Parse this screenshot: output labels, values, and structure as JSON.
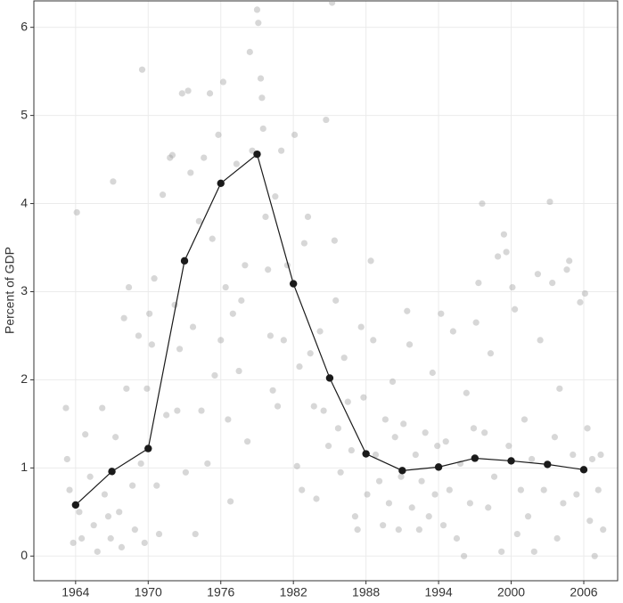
{
  "chart_data": {
    "ylabel": "Percent of GDP",
    "xlim": [
      1960.55,
      2008.8
    ],
    "ylim": [
      -0.28,
      6.3
    ],
    "xticks": [
      1964,
      1970,
      1976,
      1982,
      1988,
      1994,
      2000,
      2006
    ],
    "yticks": [
      0,
      1,
      2,
      3,
      4,
      5,
      6
    ],
    "grid": true,
    "series": [
      {
        "type": "scatter",
        "color": "#9a9a9a",
        "x": [
          1963.2,
          1963.3,
          1963.5,
          1963.8,
          1964.1,
          1964.3,
          1964.5,
          1964.8,
          1965.2,
          1965.5,
          1965.8,
          1966.2,
          1966.4,
          1966.7,
          1966.9,
          1967.1,
          1967.3,
          1967.6,
          1967.8,
          1968.0,
          1968.2,
          1968.4,
          1968.7,
          1968.9,
          1969.2,
          1969.4,
          1969.5,
          1969.7,
          1969.9,
          1970.1,
          1970.3,
          1970.5,
          1970.7,
          1970.9,
          1971.2,
          1971.5,
          1971.8,
          1972.0,
          1972.2,
          1972.4,
          1972.6,
          1972.8,
          1973.1,
          1973.3,
          1973.5,
          1973.7,
          1973.9,
          1974.2,
          1974.4,
          1974.6,
          1974.9,
          1975.1,
          1975.3,
          1975.5,
          1975.8,
          1976.0,
          1976.2,
          1976.4,
          1976.6,
          1976.8,
          1977.0,
          1977.3,
          1977.5,
          1977.7,
          1978.0,
          1978.2,
          1978.4,
          1978.6,
          1979.0,
          1979.1,
          1979.3,
          1979.4,
          1979.5,
          1979.7,
          1979.9,
          1980.1,
          1980.3,
          1980.5,
          1980.7,
          1981.0,
          1981.2,
          1981.5,
          1982.1,
          1982.3,
          1982.5,
          1982.7,
          1982.9,
          1983.2,
          1983.4,
          1983.7,
          1983.9,
          1984.2,
          1984.5,
          1984.7,
          1984.9,
          1985.2,
          1985.4,
          1985.5,
          1985.7,
          1985.9,
          1986.2,
          1986.5,
          1986.8,
          1987.1,
          1987.3,
          1987.6,
          1987.8,
          1988.1,
          1988.4,
          1988.6,
          1988.8,
          1989.1,
          1989.4,
          1989.6,
          1989.9,
          1990.2,
          1990.4,
          1990.7,
          1990.9,
          1991.1,
          1991.4,
          1991.6,
          1991.8,
          1992.1,
          1992.4,
          1992.6,
          1992.9,
          1993.2,
          1993.5,
          1993.7,
          1993.9,
          1994.2,
          1994.4,
          1994.6,
          1994.9,
          1995.2,
          1995.5,
          1995.8,
          1996.1,
          1996.3,
          1996.6,
          1996.9,
          1997.1,
          1997.3,
          1997.6,
          1997.8,
          1998.1,
          1998.3,
          1998.6,
          1998.9,
          1999.2,
          1999.4,
          1999.6,
          1999.8,
          2000.1,
          2000.3,
          2000.5,
          2000.8,
          2001.1,
          2001.4,
          2001.7,
          2001.9,
          2002.2,
          2002.4,
          2002.7,
          2003.2,
          2003.4,
          2003.6,
          2003.8,
          2004.0,
          2004.3,
          2004.6,
          2004.8,
          2005.1,
          2005.4,
          2005.7,
          2006.1,
          2006.3,
          2006.5,
          2006.7,
          2006.9,
          2007.2,
          2007.4,
          2007.6
        ],
        "values": [
          1.68,
          1.1,
          0.75,
          0.15,
          3.9,
          0.5,
          0.2,
          1.38,
          0.9,
          0.35,
          0.05,
          1.68,
          0.7,
          0.45,
          0.2,
          4.25,
          1.35,
          0.5,
          0.1,
          2.7,
          1.9,
          3.05,
          0.8,
          0.3,
          2.5,
          1.05,
          5.52,
          0.15,
          1.9,
          2.75,
          2.4,
          3.15,
          0.8,
          0.25,
          4.1,
          1.6,
          4.52,
          4.55,
          2.85,
          1.65,
          2.35,
          5.25,
          0.95,
          5.28,
          4.35,
          2.6,
          0.25,
          3.8,
          1.65,
          4.52,
          1.05,
          5.25,
          3.6,
          2.05,
          4.78,
          2.45,
          5.38,
          3.05,
          1.55,
          0.62,
          2.75,
          4.45,
          2.1,
          2.9,
          3.3,
          1.3,
          5.72,
          4.6,
          6.2,
          6.05,
          5.42,
          5.2,
          4.85,
          3.85,
          3.25,
          2.5,
          1.88,
          4.08,
          1.7,
          4.6,
          2.45,
          3.3,
          4.78,
          1.02,
          2.15,
          0.75,
          3.55,
          3.85,
          2.3,
          1.7,
          0.65,
          2.55,
          1.65,
          4.95,
          1.25,
          6.28,
          3.58,
          2.9,
          1.45,
          0.95,
          2.25,
          1.75,
          1.2,
          0.45,
          0.3,
          2.6,
          1.8,
          0.7,
          3.35,
          2.45,
          1.15,
          0.85,
          0.35,
          1.55,
          0.6,
          1.98,
          1.35,
          0.3,
          0.9,
          1.5,
          2.78,
          2.4,
          0.55,
          1.15,
          0.3,
          0.85,
          1.4,
          0.45,
          2.08,
          0.7,
          1.25,
          2.75,
          0.35,
          1.3,
          0.75,
          2.55,
          0.2,
          1.05,
          0.0,
          1.85,
          0.6,
          1.45,
          2.65,
          3.1,
          4.0,
          1.4,
          0.55,
          2.3,
          0.9,
          3.4,
          0.05,
          3.65,
          3.45,
          1.25,
          3.05,
          2.8,
          0.25,
          0.75,
          1.55,
          0.45,
          1.1,
          0.05,
          3.2,
          2.45,
          0.75,
          4.02,
          3.1,
          1.35,
          0.2,
          1.9,
          0.6,
          3.25,
          3.35,
          1.15,
          0.7,
          2.88,
          2.98,
          1.45,
          0.4,
          1.1,
          0.0,
          0.75,
          1.15,
          0.3
        ]
      },
      {
        "type": "line",
        "color": "#1a1a1a",
        "x": [
          1964,
          1967,
          1970,
          1973,
          1976,
          1979,
          1982,
          1985,
          1988,
          1991,
          1994,
          1997,
          2000,
          2003,
          2006
        ],
        "values": [
          0.58,
          0.96,
          1.22,
          3.35,
          4.23,
          4.56,
          3.09,
          2.02,
          1.16,
          0.97,
          1.01,
          1.11,
          1.08,
          1.04,
          0.98
        ]
      }
    ]
  }
}
